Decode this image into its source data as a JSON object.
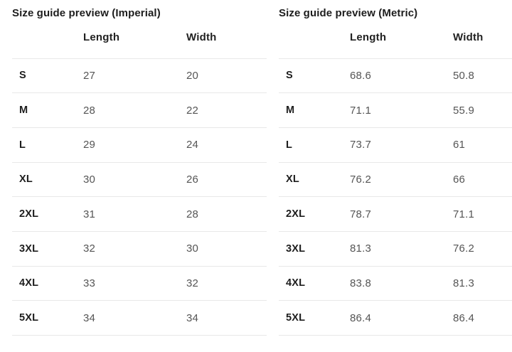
{
  "colors": {
    "background": "#ffffff",
    "text_primary": "#1d1d1d",
    "text_secondary": "#555555",
    "row_border": "#e8e8e8"
  },
  "tables": [
    {
      "title": "Size guide preview (Imperial)",
      "col_headers": {
        "size": "",
        "length": "Length",
        "width": "Width"
      },
      "rows": [
        {
          "size": "S",
          "length": "27",
          "width": "20"
        },
        {
          "size": "M",
          "length": "28",
          "width": "22"
        },
        {
          "size": "L",
          "length": "29",
          "width": "24"
        },
        {
          "size": "XL",
          "length": "30",
          "width": "26"
        },
        {
          "size": "2XL",
          "length": "31",
          "width": "28"
        },
        {
          "size": "3XL",
          "length": "32",
          "width": "30"
        },
        {
          "size": "4XL",
          "length": "33",
          "width": "32"
        },
        {
          "size": "5XL",
          "length": "34",
          "width": "34"
        }
      ]
    },
    {
      "title": "Size guide preview (Metric)",
      "col_headers": {
        "size": "",
        "length": "Length",
        "width": "Width"
      },
      "rows": [
        {
          "size": "S",
          "length": "68.6",
          "width": "50.8"
        },
        {
          "size": "M",
          "length": "71.1",
          "width": "55.9"
        },
        {
          "size": "L",
          "length": "73.7",
          "width": "61"
        },
        {
          "size": "XL",
          "length": "76.2",
          "width": "66"
        },
        {
          "size": "2XL",
          "length": "78.7",
          "width": "71.1"
        },
        {
          "size": "3XL",
          "length": "81.3",
          "width": "76.2"
        },
        {
          "size": "4XL",
          "length": "83.8",
          "width": "81.3"
        },
        {
          "size": "5XL",
          "length": "86.4",
          "width": "86.4"
        }
      ]
    }
  ]
}
